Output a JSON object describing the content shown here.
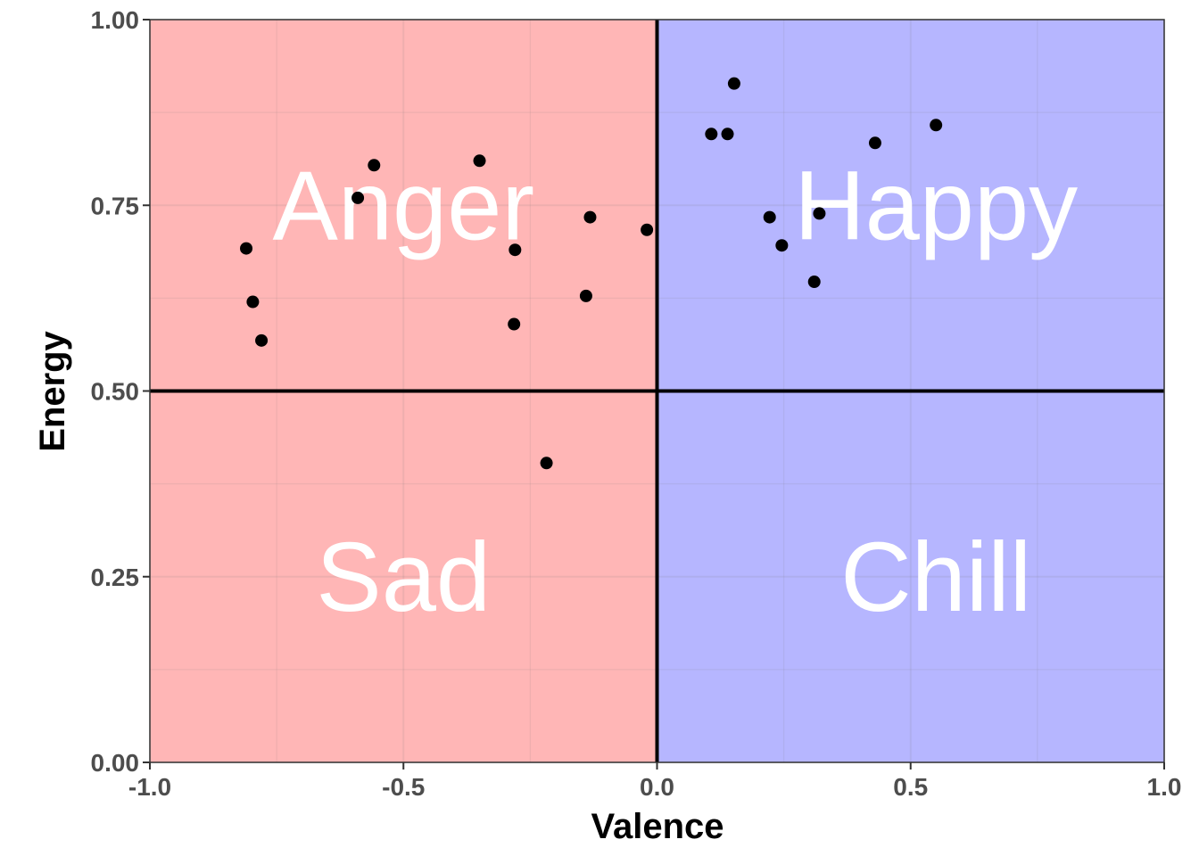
{
  "chart_data": {
    "type": "scatter",
    "xlabel": "Valence",
    "ylabel": "Energy",
    "xlim": [
      -1.0,
      1.0
    ],
    "ylim": [
      0.0,
      1.0
    ],
    "x_ticks": [
      -1.0,
      -0.5,
      0.0,
      0.5,
      1.0
    ],
    "x_tick_labels": [
      "-1.0",
      "-0.5",
      "0.0",
      "0.5",
      "1.0"
    ],
    "y_ticks": [
      0.0,
      0.25,
      0.5,
      0.75,
      1.0
    ],
    "y_tick_labels": [
      "0.00",
      "0.25",
      "0.50",
      "0.75",
      "1.00"
    ],
    "grid": true,
    "reference_lines": {
      "x": 0.0,
      "y": 0.5
    },
    "regions": [
      {
        "x_range": [
          -1.0,
          0.0
        ],
        "y_range": [
          0.0,
          1.0
        ],
        "color": "#ffb6b6"
      },
      {
        "x_range": [
          0.0,
          1.0
        ],
        "y_range": [
          0.0,
          1.0
        ],
        "color": "#b6b6ff"
      }
    ],
    "quadrant_labels": [
      {
        "text": "Anger",
        "x": -0.5,
        "y": 0.75
      },
      {
        "text": "Happy",
        "x": 0.55,
        "y": 0.75
      },
      {
        "text": "Sad",
        "x": -0.5,
        "y": 0.25
      },
      {
        "text": "Chill",
        "x": 0.55,
        "y": 0.25
      }
    ],
    "points": [
      {
        "x": -0.81,
        "y": 0.692
      },
      {
        "x": -0.797,
        "y": 0.62
      },
      {
        "x": -0.78,
        "y": 0.568
      },
      {
        "x": -0.59,
        "y": 0.76
      },
      {
        "x": -0.558,
        "y": 0.804
      },
      {
        "x": -0.35,
        "y": 0.81
      },
      {
        "x": -0.28,
        "y": 0.69
      },
      {
        "x": -0.282,
        "y": 0.59
      },
      {
        "x": -0.218,
        "y": 0.403
      },
      {
        "x": -0.14,
        "y": 0.628
      },
      {
        "x": -0.132,
        "y": 0.734
      },
      {
        "x": -0.02,
        "y": 0.717
      },
      {
        "x": 0.107,
        "y": 0.846
      },
      {
        "x": 0.139,
        "y": 0.846
      },
      {
        "x": 0.152,
        "y": 0.914
      },
      {
        "x": 0.222,
        "y": 0.734
      },
      {
        "x": 0.246,
        "y": 0.696
      },
      {
        "x": 0.31,
        "y": 0.647
      },
      {
        "x": 0.32,
        "y": 0.739
      },
      {
        "x": 0.43,
        "y": 0.834
      },
      {
        "x": 0.55,
        "y": 0.858
      }
    ],
    "point_color": "#000000"
  }
}
